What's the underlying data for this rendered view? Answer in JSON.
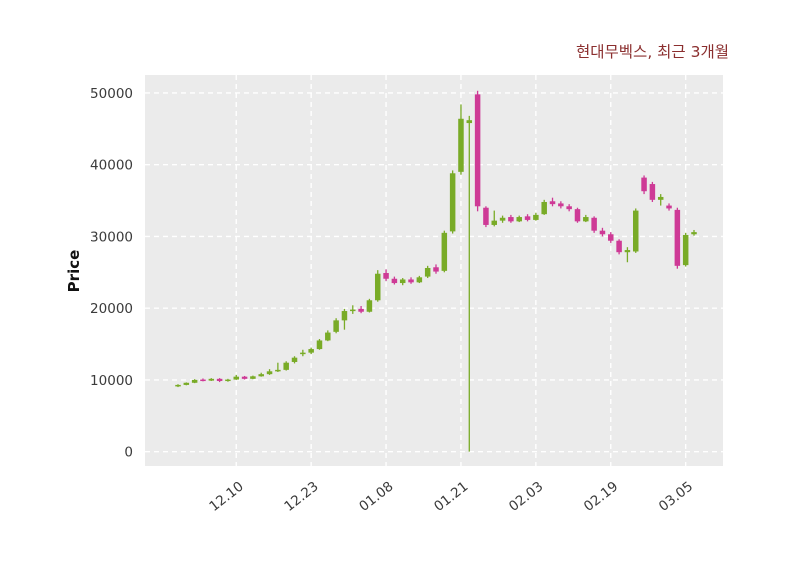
{
  "page": {
    "background_color": "#ffffff"
  },
  "chart_data": {
    "type": "candlestick",
    "title": "현대무벡스, 최근 3개월",
    "ylabel": "Price",
    "xlabel": "",
    "legend": "none",
    "grid": "dashed white gridlines on light gray plot background",
    "plot_bg_color": "#ebebeb",
    "grid_color": "#ffffff",
    "up_color": "#79ab27",
    "down_color": "#ce3a96",
    "title_color": "#8b2f2f",
    "tick_label_color": "#3b3b3b",
    "ylim": [
      -2000,
      52500
    ],
    "y_ticks": [
      0,
      10000,
      20000,
      30000,
      40000,
      50000
    ],
    "x_tick_labels": [
      "12.10",
      "12.23",
      "01.08",
      "01.21",
      "02.03",
      "02.19",
      "03.05"
    ],
    "x_tick_indices": [
      7,
      16,
      25,
      34,
      43,
      52,
      61
    ],
    "candles_format": [
      "open",
      "high",
      "low",
      "close"
    ],
    "candles": [
      [
        9150,
        9400,
        9000,
        9300
      ],
      [
        9300,
        9650,
        9250,
        9600
      ],
      [
        9600,
        10100,
        9550,
        10000
      ],
      [
        10050,
        10200,
        9800,
        9900
      ],
      [
        9900,
        10250,
        9850,
        10150
      ],
      [
        10150,
        10250,
        9700,
        9850
      ],
      [
        9850,
        10150,
        9750,
        10050
      ],
      [
        10050,
        10700,
        10000,
        10450
      ],
      [
        10450,
        10550,
        10050,
        10150
      ],
      [
        10150,
        10600,
        10100,
        10500
      ],
      [
        10500,
        11000,
        10450,
        10800
      ],
      [
        10800,
        11500,
        10700,
        11200
      ],
      [
        11200,
        12400,
        11100,
        11400
      ],
      [
        11400,
        12600,
        11300,
        12400
      ],
      [
        12500,
        13300,
        12300,
        13100
      ],
      [
        13600,
        14200,
        13300,
        13800
      ],
      [
        13800,
        14500,
        13600,
        14300
      ],
      [
        14300,
        15700,
        14200,
        15500
      ],
      [
        15500,
        16900,
        15400,
        16600
      ],
      [
        16700,
        18600,
        16500,
        18300
      ],
      [
        18300,
        19900,
        17000,
        19600
      ],
      [
        19600,
        20400,
        19200,
        19800
      ],
      [
        19900,
        20300,
        19300,
        19500
      ],
      [
        19500,
        21300,
        19400,
        21100
      ],
      [
        21100,
        25300,
        20900,
        24800
      ],
      [
        24900,
        25400,
        23800,
        24100
      ],
      [
        24100,
        24400,
        23300,
        23500
      ],
      [
        23500,
        24200,
        23200,
        24000
      ],
      [
        24000,
        24300,
        23400,
        23600
      ],
      [
        23600,
        24500,
        23500,
        24300
      ],
      [
        24400,
        25900,
        24200,
        25600
      ],
      [
        25700,
        26100,
        24800,
        25100
      ],
      [
        25200,
        30800,
        25000,
        30500
      ],
      [
        30700,
        39200,
        30400,
        38800
      ],
      [
        39000,
        48400,
        38600,
        46400
      ],
      [
        45800,
        46800,
        0,
        46200
      ],
      [
        49800,
        50300,
        33500,
        34200
      ],
      [
        34000,
        34200,
        31300,
        31600
      ],
      [
        31600,
        33600,
        31400,
        32200
      ],
      [
        32200,
        32900,
        31900,
        32600
      ],
      [
        32700,
        33000,
        31900,
        32100
      ],
      [
        32100,
        32900,
        32000,
        32700
      ],
      [
        32800,
        33100,
        32100,
        32300
      ],
      [
        32300,
        33300,
        32200,
        33000
      ],
      [
        33100,
        35100,
        33000,
        34800
      ],
      [
        34900,
        35400,
        34200,
        34500
      ],
      [
        34600,
        34900,
        33900,
        34200
      ],
      [
        34200,
        34500,
        33500,
        33800
      ],
      [
        33800,
        34000,
        31900,
        32100
      ],
      [
        32100,
        33000,
        32000,
        32700
      ],
      [
        32600,
        32800,
        30500,
        30800
      ],
      [
        30800,
        31200,
        30000,
        30300
      ],
      [
        30300,
        30600,
        29100,
        29400
      ],
      [
        29400,
        29600,
        27500,
        27800
      ],
      [
        27800,
        28500,
        26400,
        28100
      ],
      [
        27900,
        33900,
        27700,
        33600
      ],
      [
        38200,
        38500,
        35900,
        36300
      ],
      [
        37300,
        37600,
        34800,
        35100
      ],
      [
        35100,
        35900,
        34300,
        35500
      ],
      [
        34300,
        34600,
        33600,
        33900
      ],
      [
        33700,
        34000,
        25500,
        25900
      ],
      [
        26000,
        30500,
        25800,
        30200
      ],
      [
        30300,
        30900,
        30100,
        30600
      ]
    ]
  }
}
